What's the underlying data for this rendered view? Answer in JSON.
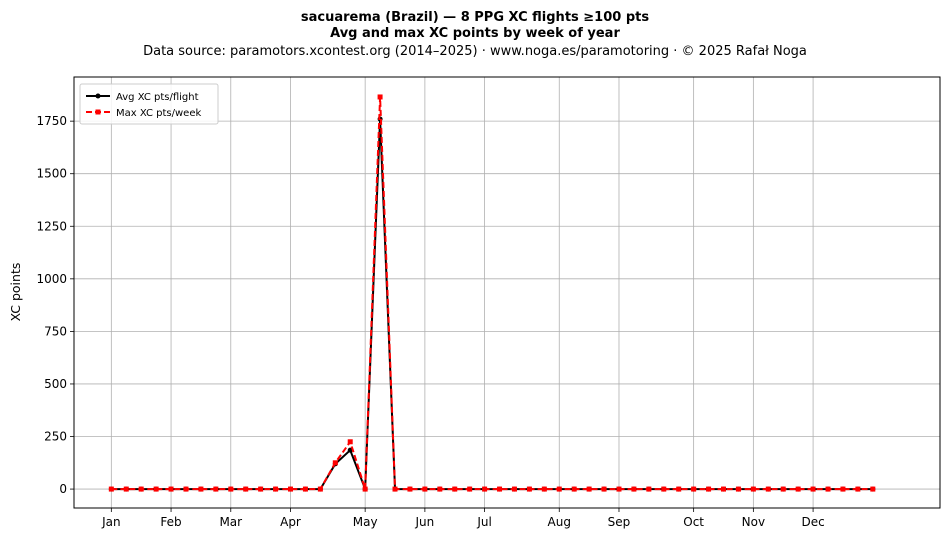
{
  "chart_data": {
    "type": "line",
    "title_line1": "sacuarema (Brazil)  —  8 PPG XC flights ≥100 pts",
    "title_line2": "Avg and max XC points by week of year",
    "subtitle": "Data source: paramotors.xcontest.org (2014–2025)  ·  www.noga.es/paramotoring  ·  © 2025 Rafał Noga",
    "ylabel": "XC points",
    "xlabel": "",
    "x_weeks": [
      1,
      2,
      3,
      4,
      5,
      6,
      7,
      8,
      9,
      10,
      11,
      12,
      13,
      14,
      15,
      16,
      17,
      18,
      19,
      20,
      21,
      22,
      23,
      24,
      25,
      26,
      27,
      28,
      29,
      30,
      31,
      32,
      33,
      34,
      35,
      36,
      37,
      38,
      39,
      40,
      41,
      42,
      43,
      44,
      45,
      46,
      47,
      48,
      49,
      50,
      51,
      52
    ],
    "xlim": [
      -1.5,
      56.5
    ],
    "ylim": [
      -90,
      1960
    ],
    "yticks": [
      0,
      250,
      500,
      750,
      1000,
      1250,
      1500,
      1750
    ],
    "month_ticks": [
      {
        "label": "Jan",
        "week": 1
      },
      {
        "label": "Feb",
        "week": 5
      },
      {
        "label": "Mar",
        "week": 9
      },
      {
        "label": "Apr",
        "week": 13
      },
      {
        "label": "May",
        "week": 18
      },
      {
        "label": "Jun",
        "week": 22
      },
      {
        "label": "Jul",
        "week": 26
      },
      {
        "label": "Aug",
        "week": 31
      },
      {
        "label": "Sep",
        "week": 35
      },
      {
        "label": "Oct",
        "week": 40
      },
      {
        "label": "Nov",
        "week": 44
      },
      {
        "label": "Dec",
        "week": 48
      }
    ],
    "grid": true,
    "legend_position": "top-left",
    "series": [
      {
        "name": "Avg XC pts/flight",
        "color": "#000000",
        "style": "solid",
        "marker": "circle",
        "values": [
          0,
          0,
          0,
          0,
          0,
          0,
          0,
          0,
          0,
          0,
          0,
          0,
          0,
          0,
          0,
          120,
          185,
          0,
          1760,
          0,
          0,
          0,
          0,
          0,
          0,
          0,
          0,
          0,
          0,
          0,
          0,
          0,
          0,
          0,
          0,
          0,
          0,
          0,
          0,
          0,
          0,
          0,
          0,
          0,
          0,
          0,
          0,
          0,
          0,
          0,
          0,
          0
        ]
      },
      {
        "name": "Max XC pts/week",
        "color": "#ff0000",
        "style": "dashed",
        "marker": "square",
        "values": [
          0,
          0,
          0,
          0,
          0,
          0,
          0,
          0,
          0,
          0,
          0,
          0,
          0,
          0,
          0,
          125,
          225,
          0,
          1865,
          0,
          0,
          0,
          0,
          0,
          0,
          0,
          0,
          0,
          0,
          0,
          0,
          0,
          0,
          0,
          0,
          0,
          0,
          0,
          0,
          0,
          0,
          0,
          0,
          0,
          0,
          0,
          0,
          0,
          0,
          0,
          0,
          0
        ]
      }
    ]
  }
}
